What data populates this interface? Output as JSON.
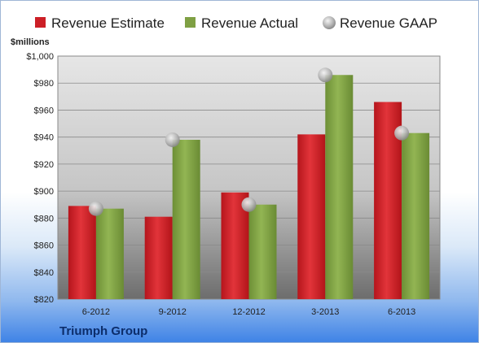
{
  "chart_data": {
    "type": "bar",
    "categories": [
      "6-2012",
      "9-2012",
      "12-2012",
      "3-2013",
      "6-2013"
    ],
    "series": [
      {
        "name": "Revenue Estimate",
        "values": [
          889,
          881,
          899,
          942,
          966
        ],
        "color": "#cc1f26",
        "kind": "bar"
      },
      {
        "name": "Revenue Actual",
        "values": [
          887,
          938,
          890,
          986,
          943
        ],
        "color": "#7fa044",
        "kind": "bar"
      },
      {
        "name": "Revenue GAAP",
        "values": [
          887,
          938,
          890,
          986,
          943
        ],
        "color": "#b8b8b8",
        "kind": "marker"
      }
    ],
    "ylabel": "$millions",
    "ylim": [
      820,
      1000
    ],
    "yticks": [
      820,
      840,
      860,
      880,
      900,
      920,
      940,
      960,
      980,
      1000
    ],
    "ytick_labels": [
      "$820",
      "$840",
      "$860",
      "$880",
      "$900",
      "$920",
      "$940",
      "$960",
      "$980",
      "$1,000"
    ],
    "grid": true,
    "legend": "top",
    "footer": "Triumph Group"
  }
}
